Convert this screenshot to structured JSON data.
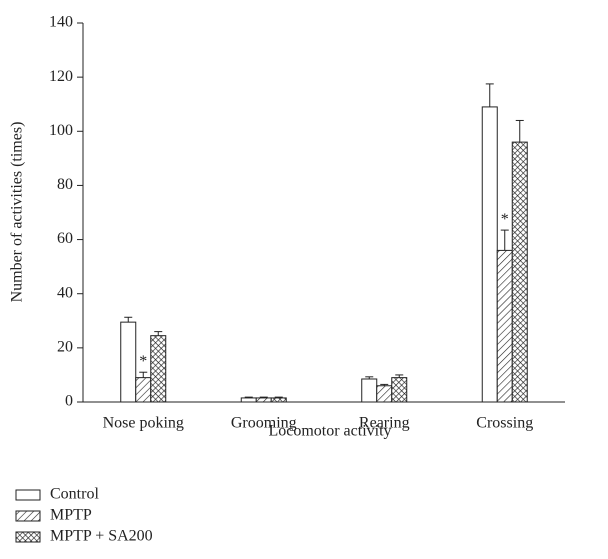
{
  "chart_data": {
    "type": "bar",
    "x_label": "Locomotor activity",
    "y_label": "Number of activities (times)",
    "categories": [
      "Nose poking",
      "Grooming",
      "Rearing",
      "Crossing"
    ],
    "series": [
      {
        "name": "Control",
        "color": "#ffffff",
        "pattern": "none",
        "values": [
          29.5,
          1.5,
          8.5,
          109
        ],
        "errors": [
          1.8,
          0.3,
          0.8,
          8.5
        ]
      },
      {
        "name": "MPTP",
        "color": "#ffffff",
        "pattern": "hatch",
        "values": [
          9,
          1.5,
          6,
          56
        ],
        "errors": [
          2,
          0.3,
          0.5,
          7.5
        ]
      },
      {
        "name": "MPTP + SA200",
        "color": "#ffffff",
        "pattern": "crosshatch",
        "values": [
          24.5,
          1.5,
          9,
          96
        ],
        "errors": [
          1.5,
          0.3,
          1,
          8
        ]
      }
    ],
    "annotations": [
      {
        "text": "*",
        "category": 0,
        "series": 1
      },
      {
        "text": "*",
        "category": 3,
        "series": 1
      }
    ],
    "ylim": [
      0,
      140
    ],
    "yticks": [
      0,
      20,
      40,
      60,
      80,
      100,
      120,
      140
    ]
  }
}
